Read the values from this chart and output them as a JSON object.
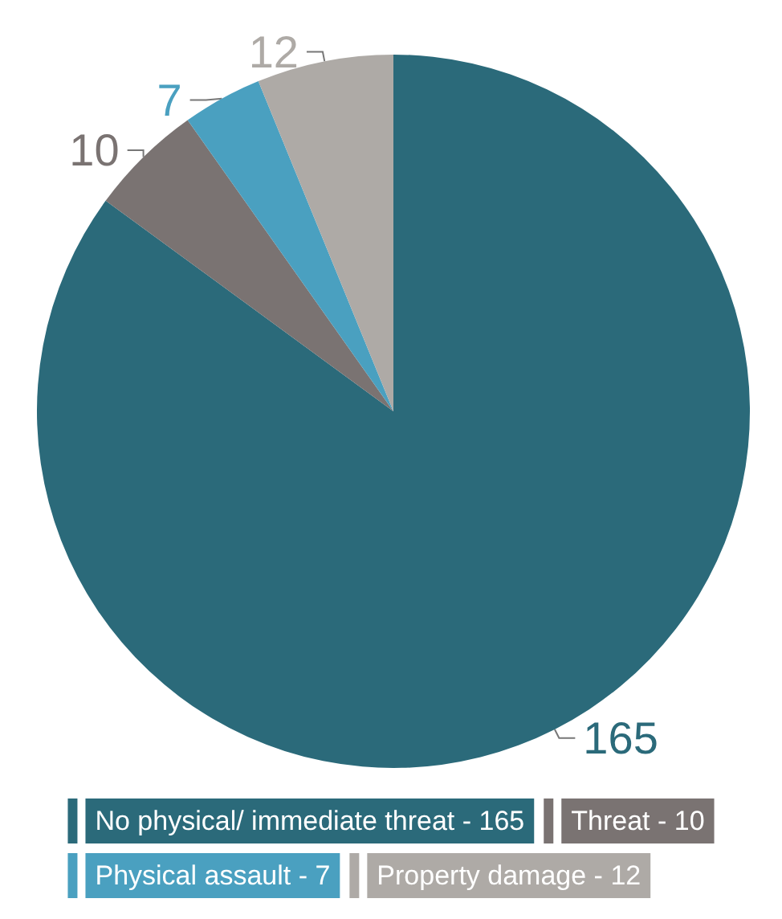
{
  "chart_data": {
    "type": "pie",
    "categories": [
      "No physical/ immediate threat - 165",
      "Threat - 10",
      "Physical assault - 7",
      "Property damage - 12"
    ],
    "values": [
      165,
      10,
      7,
      12
    ],
    "colors": [
      "#2b6a7a",
      "#7a7372",
      "#4aa0c0",
      "#aeaaa6"
    ],
    "data_labels": true,
    "legend": "bottom"
  }
}
